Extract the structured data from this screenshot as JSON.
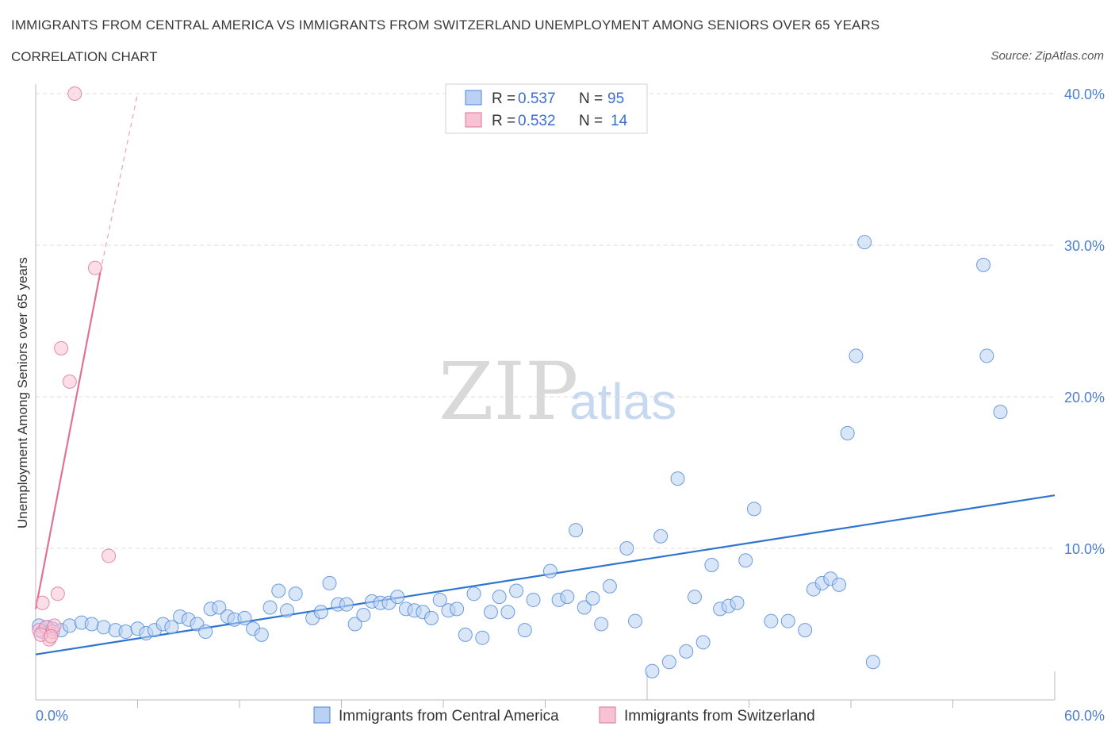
{
  "header": {
    "title": "IMMIGRANTS FROM CENTRAL AMERICA VS IMMIGRANTS FROM SWITZERLAND UNEMPLOYMENT AMONG SENIORS OVER 65 YEARS",
    "subtitle": "CORRELATION CHART",
    "source": "Source: ZipAtlas.com"
  },
  "watermark": {
    "zip": "ZIP",
    "atlas": "atlas"
  },
  "legend": {
    "rows": [
      {
        "r_label": "R = ",
        "r_value": "0.537",
        "n_label": "N = ",
        "n_value": "95"
      },
      {
        "r_label": "R = ",
        "r_value": "0.532",
        "n_label": "N = ",
        "n_value": "14"
      }
    ]
  },
  "chart_data": {
    "type": "scatter",
    "title": "IMMIGRANTS FROM CENTRAL AMERICA VS IMMIGRANTS FROM SWITZERLAND UNEMPLOYMENT AMONG SENIORS OVER 65 YEARS",
    "ylabel": "Unemployment Among Seniors over 65 years",
    "xlabel": "",
    "xlim": [
      0,
      60
    ],
    "ylim": [
      0,
      40
    ],
    "x_tick_labels": [
      "0.0%",
      "60.0%"
    ],
    "y_tick_values": [
      10,
      20,
      30,
      40
    ],
    "y_tick_labels": [
      "10.0%",
      "20.0%",
      "30.0%",
      "40.0%"
    ],
    "colors": {
      "blue": "#4a86d8",
      "blue_fill": "#b9d2f3",
      "pink": "#e0729a",
      "pink_fill": "#f7c3d4"
    },
    "series": [
      {
        "name": "Immigrants from Central America",
        "color": "#4a86d8",
        "trend": {
          "x": [
            0,
            60
          ],
          "y": [
            3.0,
            13.5
          ]
        },
        "points": [
          [
            0.2,
            4.9
          ],
          [
            0.4,
            4.5
          ],
          [
            0.7,
            4.8
          ],
          [
            1.0,
            4.7
          ],
          [
            1.5,
            4.6
          ],
          [
            2.0,
            4.9
          ],
          [
            2.7,
            5.1
          ],
          [
            3.3,
            5.0
          ],
          [
            4.0,
            4.8
          ],
          [
            4.7,
            4.6
          ],
          [
            5.3,
            4.5
          ],
          [
            6.0,
            4.7
          ],
          [
            6.5,
            4.4
          ],
          [
            7.0,
            4.6
          ],
          [
            7.5,
            5.0
          ],
          [
            8.0,
            4.8
          ],
          [
            8.5,
            5.5
          ],
          [
            9.0,
            5.3
          ],
          [
            9.5,
            5.0
          ],
          [
            10.0,
            4.5
          ],
          [
            10.3,
            6.0
          ],
          [
            10.8,
            6.1
          ],
          [
            11.3,
            5.5
          ],
          [
            11.7,
            5.3
          ],
          [
            12.3,
            5.4
          ],
          [
            12.8,
            4.7
          ],
          [
            13.3,
            4.3
          ],
          [
            13.8,
            6.1
          ],
          [
            14.3,
            7.2
          ],
          [
            14.8,
            5.9
          ],
          [
            15.3,
            7.0
          ],
          [
            16.3,
            5.4
          ],
          [
            16.8,
            5.8
          ],
          [
            17.3,
            7.7
          ],
          [
            17.8,
            6.3
          ],
          [
            18.3,
            6.3
          ],
          [
            18.8,
            5.0
          ],
          [
            19.3,
            5.6
          ],
          [
            19.8,
            6.5
          ],
          [
            20.3,
            6.4
          ],
          [
            20.8,
            6.4
          ],
          [
            21.3,
            6.8
          ],
          [
            21.8,
            6.0
          ],
          [
            22.3,
            5.9
          ],
          [
            22.8,
            5.8
          ],
          [
            23.3,
            5.4
          ],
          [
            23.8,
            6.6
          ],
          [
            24.3,
            5.9
          ],
          [
            24.8,
            6.0
          ],
          [
            25.3,
            4.3
          ],
          [
            25.8,
            7.0
          ],
          [
            26.3,
            4.1
          ],
          [
            26.8,
            5.8
          ],
          [
            27.3,
            6.8
          ],
          [
            27.8,
            5.8
          ],
          [
            28.3,
            7.2
          ],
          [
            28.8,
            4.6
          ],
          [
            29.3,
            6.6
          ],
          [
            30.3,
            8.5
          ],
          [
            30.8,
            6.6
          ],
          [
            31.3,
            6.8
          ],
          [
            31.8,
            11.2
          ],
          [
            32.3,
            6.1
          ],
          [
            32.8,
            6.7
          ],
          [
            33.3,
            5.0
          ],
          [
            33.8,
            7.5
          ],
          [
            34.8,
            10.0
          ],
          [
            35.3,
            5.2
          ],
          [
            36.3,
            1.9
          ],
          [
            36.8,
            10.8
          ],
          [
            37.3,
            2.5
          ],
          [
            37.8,
            14.6
          ],
          [
            38.3,
            3.2
          ],
          [
            38.8,
            6.8
          ],
          [
            39.3,
            3.8
          ],
          [
            39.8,
            8.9
          ],
          [
            40.3,
            6.0
          ],
          [
            40.8,
            6.2
          ],
          [
            41.3,
            6.4
          ],
          [
            41.8,
            9.2
          ],
          [
            42.3,
            12.6
          ],
          [
            43.3,
            5.2
          ],
          [
            44.3,
            5.2
          ],
          [
            45.3,
            4.6
          ],
          [
            45.8,
            7.3
          ],
          [
            46.3,
            7.7
          ],
          [
            46.8,
            8.0
          ],
          [
            47.3,
            7.6
          ],
          [
            47.8,
            17.6
          ],
          [
            48.3,
            22.7
          ],
          [
            48.8,
            30.2
          ],
          [
            49.3,
            2.5
          ],
          [
            55.8,
            28.7
          ],
          [
            56.0,
            22.7
          ],
          [
            56.8,
            19.0
          ]
        ]
      },
      {
        "name": "Immigrants from Switzerland",
        "color": "#e0729a",
        "trend": {
          "x": [
            0,
            3.8
          ],
          "y": [
            6.0,
            28.2
          ],
          "dashed_to": {
            "x": 6.0,
            "y": 40.0
          }
        },
        "points": [
          [
            0.2,
            4.6
          ],
          [
            0.4,
            6.4
          ],
          [
            0.6,
            4.8
          ],
          [
            0.8,
            4.0
          ],
          [
            1.0,
            4.5
          ],
          [
            1.1,
            4.9
          ],
          [
            1.3,
            7.0
          ],
          [
            1.5,
            23.2
          ],
          [
            2.0,
            21.0
          ],
          [
            2.3,
            40.0
          ],
          [
            3.5,
            28.5
          ],
          [
            4.3,
            9.5
          ],
          [
            0.3,
            4.3
          ],
          [
            0.9,
            4.2
          ]
        ]
      }
    ]
  },
  "bottom_legend": {
    "items": [
      "Immigrants from Central America",
      "Immigrants from Switzerland"
    ]
  }
}
